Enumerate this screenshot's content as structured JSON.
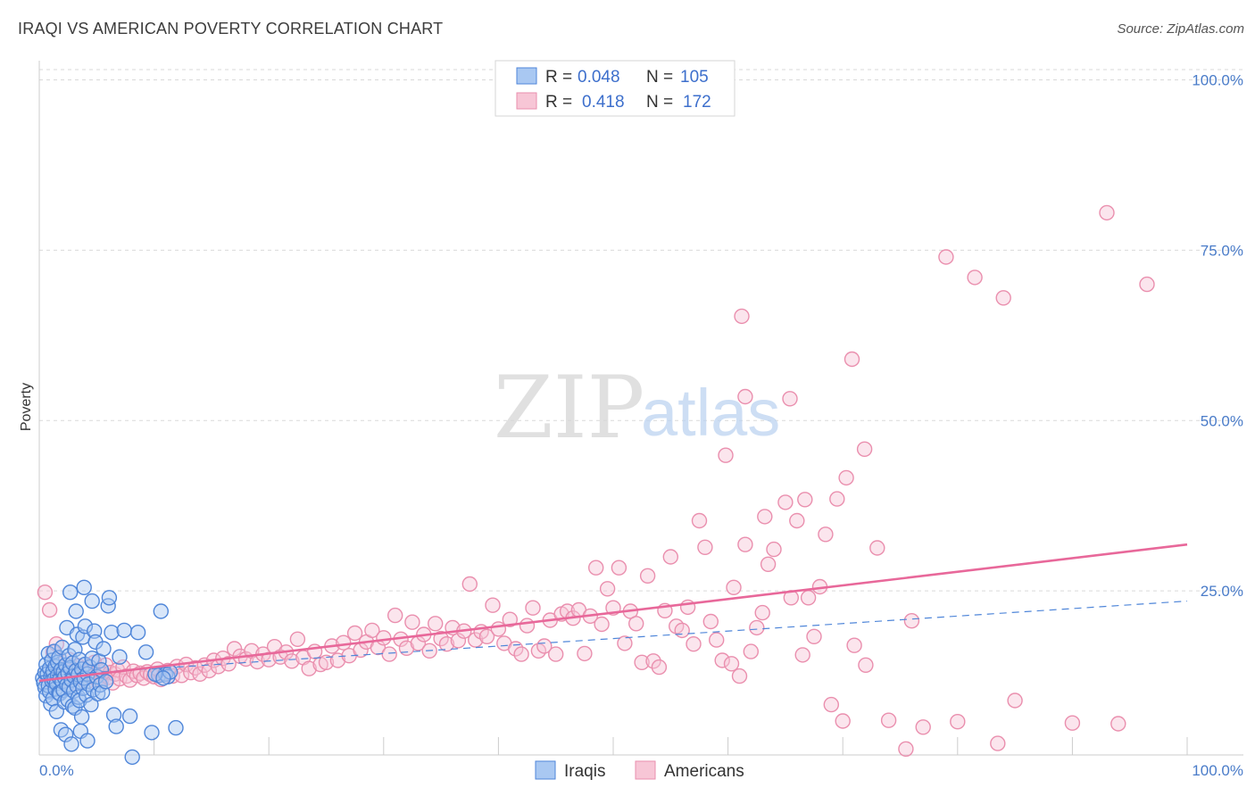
{
  "header": {
    "title": "IRAQI VS AMERICAN POVERTY CORRELATION CHART",
    "source": "Source: ZipAtlas.com"
  },
  "watermark": {
    "zip": "ZIP",
    "atlas": "atlas"
  },
  "colors": {
    "iraqis_fill": "#a9c8f2",
    "iraqis_stroke": "#4f86d9",
    "iraqis_line": "#4f86d9",
    "americans_fill": "#f7c6d6",
    "americans_stroke": "#ea8fae",
    "americans_line": "#e8689a",
    "tick_label": "#4a7cc9",
    "grid": "#d9d9d9"
  },
  "legend": {
    "iraqis": {
      "r_label": "R = ",
      "r_value": "0.048",
      "n_label": "N = ",
      "n_value": "105"
    },
    "americans": {
      "r_label": "R = ",
      "r_value": "0.418",
      "n_label": "N = ",
      "n_value": "172"
    }
  },
  "chart_data": {
    "type": "scatter",
    "ylabel": "Poverty",
    "xlim": [
      0,
      100
    ],
    "ylim": [
      0,
      105
    ],
    "x_ticks": [
      {
        "value": 0,
        "label": "0.0%"
      },
      {
        "value": 100,
        "label": "100.0%"
      }
    ],
    "y_ticks": [
      {
        "value": 25,
        "label": "25.0%"
      },
      {
        "value": 50,
        "label": "50.0%"
      },
      {
        "value": 75,
        "label": "75.0%"
      },
      {
        "value": 100,
        "label": "100.0%"
      }
    ],
    "grid": true,
    "legend_position": "top-center",
    "series": [
      {
        "name": "Iraqis",
        "r": 0.048,
        "n": 105,
        "trend": {
          "x": [
            0,
            100
          ],
          "y": [
            12.5,
            23.5
          ],
          "style": "dashed"
        },
        "points": [
          [
            0.3,
            12.2
          ],
          [
            0.4,
            11.5
          ],
          [
            0.5,
            13.0
          ],
          [
            0.5,
            10.8
          ],
          [
            0.6,
            14.2
          ],
          [
            0.6,
            9.6
          ],
          [
            0.7,
            12.8
          ],
          [
            0.8,
            11.1
          ],
          [
            0.8,
            15.8
          ],
          [
            0.9,
            13.6
          ],
          [
            0.9,
            10.2
          ],
          [
            1.0,
            12.4
          ],
          [
            1.0,
            8.4
          ],
          [
            1.1,
            14.8
          ],
          [
            1.1,
            11.8
          ],
          [
            1.2,
            13.2
          ],
          [
            1.2,
            9.2
          ],
          [
            1.3,
            12.0
          ],
          [
            1.3,
            16.1
          ],
          [
            1.4,
            10.6
          ],
          [
            1.4,
            13.9
          ],
          [
            1.5,
            11.4
          ],
          [
            1.5,
            7.3
          ],
          [
            1.6,
            12.6
          ],
          [
            1.6,
            14.5
          ],
          [
            1.7,
            10.0
          ],
          [
            1.7,
            15.2
          ],
          [
            1.8,
            12.1
          ],
          [
            1.8,
            9.9
          ],
          [
            1.9,
            13.4
          ],
          [
            1.9,
            4.6
          ],
          [
            2.0,
            11.7
          ],
          [
            2.0,
            16.7
          ],
          [
            2.1,
            10.4
          ],
          [
            2.1,
            13.1
          ],
          [
            2.2,
            12.3
          ],
          [
            2.2,
            8.7
          ],
          [
            2.3,
            14.1
          ],
          [
            2.3,
            3.9
          ],
          [
            2.4,
            11.2
          ],
          [
            2.4,
            19.6
          ],
          [
            2.5,
            12.9
          ],
          [
            2.5,
            9.0
          ],
          [
            2.6,
            15.5
          ],
          [
            2.6,
            10.9
          ],
          [
            2.7,
            24.8
          ],
          [
            2.7,
            13.7
          ],
          [
            2.8,
            2.5
          ],
          [
            2.8,
            11.9
          ],
          [
            2.9,
            8.1
          ],
          [
            2.9,
            14.4
          ],
          [
            3.0,
            12.5
          ],
          [
            3.0,
            10.3
          ],
          [
            3.1,
            16.4
          ],
          [
            3.1,
            7.8
          ],
          [
            3.2,
            13.3
          ],
          [
            3.2,
            22.0
          ],
          [
            3.3,
            11.0
          ],
          [
            3.3,
            18.6
          ],
          [
            3.4,
            12.7
          ],
          [
            3.4,
            9.4
          ],
          [
            3.5,
            14.9
          ],
          [
            3.5,
            8.9
          ],
          [
            3.6,
            11.6
          ],
          [
            3.6,
            4.4
          ],
          [
            3.7,
            13.5
          ],
          [
            3.7,
            6.5
          ],
          [
            3.8,
            10.7
          ],
          [
            3.8,
            18.2
          ],
          [
            3.9,
            12.2
          ],
          [
            3.9,
            25.5
          ],
          [
            4.0,
            14.2
          ],
          [
            4.0,
            19.8
          ],
          [
            4.1,
            9.7
          ],
          [
            4.2,
            12.8
          ],
          [
            4.2,
            3.0
          ],
          [
            4.3,
            11.3
          ],
          [
            4.4,
            13.8
          ],
          [
            4.5,
            8.3
          ],
          [
            4.6,
            23.5
          ],
          [
            4.6,
            15.1
          ],
          [
            4.7,
            10.5
          ],
          [
            4.8,
            19.1
          ],
          [
            4.9,
            17.5
          ],
          [
            5.0,
            12.4
          ],
          [
            5.1,
            9.9
          ],
          [
            5.2,
            14.7
          ],
          [
            5.3,
            11.2
          ],
          [
            5.4,
            13.4
          ],
          [
            5.5,
            10.1
          ],
          [
            5.6,
            16.5
          ],
          [
            5.8,
            11.7
          ],
          [
            6.0,
            22.8
          ],
          [
            6.1,
            24.0
          ],
          [
            6.3,
            18.9
          ],
          [
            6.5,
            6.8
          ],
          [
            6.7,
            5.1
          ],
          [
            7.0,
            15.3
          ],
          [
            7.4,
            19.2
          ],
          [
            7.9,
            6.6
          ],
          [
            8.1,
            0.6
          ],
          [
            8.6,
            18.9
          ],
          [
            9.3,
            16.0
          ],
          [
            9.8,
            4.2
          ],
          [
            10.6,
            22.0
          ],
          [
            10.4,
            12.6
          ],
          [
            11.0,
            12.8
          ],
          [
            11.2,
            12.4
          ],
          [
            11.4,
            13.1
          ],
          [
            10.1,
            12.8
          ],
          [
            10.8,
            12.2
          ],
          [
            11.9,
            4.9
          ]
        ]
      },
      {
        "name": "Americans",
        "r": 0.418,
        "n": 172,
        "trend": {
          "x": [
            0,
            100
          ],
          "y": [
            11.8,
            31.8
          ],
          "style": "solid"
        },
        "points": [
          [
            0.5,
            24.8
          ],
          [
            0.9,
            22.2
          ],
          [
            1.2,
            16.0
          ],
          [
            1.5,
            17.2
          ],
          [
            1.8,
            14.2
          ],
          [
            2.0,
            12.8
          ],
          [
            2.2,
            13.5
          ],
          [
            2.4,
            11.9
          ],
          [
            2.6,
            14.9
          ],
          [
            2.8,
            12.6
          ],
          [
            3.0,
            13.2
          ],
          [
            3.2,
            11.4
          ],
          [
            3.4,
            14.0
          ],
          [
            3.6,
            12.2
          ],
          [
            3.8,
            13.6
          ],
          [
            4.0,
            12.9
          ],
          [
            4.2,
            11.7
          ],
          [
            4.4,
            13.1
          ],
          [
            4.6,
            12.4
          ],
          [
            4.8,
            14.5
          ],
          [
            5.0,
            12.0
          ],
          [
            5.2,
            13.3
          ],
          [
            5.4,
            11.8
          ],
          [
            5.6,
            12.7
          ],
          [
            5.8,
            14.1
          ],
          [
            6.0,
            12.3
          ],
          [
            6.2,
            13.0
          ],
          [
            6.4,
            11.5
          ],
          [
            6.6,
            12.8
          ],
          [
            6.8,
            13.4
          ],
          [
            7.0,
            12.1
          ],
          [
            7.3,
            13.8
          ],
          [
            7.6,
            12.5
          ],
          [
            7.9,
            11.9
          ],
          [
            8.2,
            13.2
          ],
          [
            8.5,
            12.6
          ],
          [
            8.8,
            12.9
          ],
          [
            9.1,
            12.2
          ],
          [
            9.4,
            13.1
          ],
          [
            9.7,
            12.7
          ],
          [
            10.0,
            12.4
          ],
          [
            10.3,
            13.5
          ],
          [
            10.6,
            12.0
          ],
          [
            10.9,
            12.8
          ],
          [
            11.2,
            13.3
          ],
          [
            11.6,
            12.5
          ],
          [
            12.0,
            13.9
          ],
          [
            12.4,
            12.6
          ],
          [
            12.8,
            14.2
          ],
          [
            13.2,
            13.0
          ],
          [
            13.6,
            13.7
          ],
          [
            14.0,
            12.8
          ],
          [
            14.4,
            14.1
          ],
          [
            14.8,
            13.3
          ],
          [
            15.2,
            14.8
          ],
          [
            15.6,
            13.9
          ],
          [
            16.0,
            15.1
          ],
          [
            16.5,
            14.3
          ],
          [
            17.0,
            16.5
          ],
          [
            17.5,
            15.4
          ],
          [
            18.0,
            15.0
          ],
          [
            18.5,
            16.2
          ],
          [
            19.0,
            14.6
          ],
          [
            19.5,
            15.7
          ],
          [
            20.0,
            14.9
          ],
          [
            20.5,
            16.8
          ],
          [
            21.0,
            15.3
          ],
          [
            21.5,
            16.0
          ],
          [
            22.0,
            14.7
          ],
          [
            22.5,
            17.9
          ],
          [
            23.0,
            15.2
          ],
          [
            23.5,
            13.6
          ],
          [
            24.0,
            16.1
          ],
          [
            24.5,
            14.2
          ],
          [
            25.0,
            14.5
          ],
          [
            25.5,
            16.9
          ],
          [
            26.0,
            14.8
          ],
          [
            26.5,
            17.4
          ],
          [
            27.0,
            15.5
          ],
          [
            27.5,
            18.8
          ],
          [
            28.0,
            16.3
          ],
          [
            28.5,
            17.5
          ],
          [
            29.0,
            19.2
          ],
          [
            29.5,
            16.7
          ],
          [
            30.0,
            18.1
          ],
          [
            30.5,
            15.7
          ],
          [
            31.0,
            21.4
          ],
          [
            31.5,
            17.9
          ],
          [
            32.0,
            16.6
          ],
          [
            32.5,
            20.4
          ],
          [
            33.0,
            17.3
          ],
          [
            33.5,
            18.6
          ],
          [
            34.0,
            16.2
          ],
          [
            34.5,
            20.2
          ],
          [
            35.0,
            18.0
          ],
          [
            35.5,
            17.2
          ],
          [
            36.0,
            19.6
          ],
          [
            36.5,
            17.7
          ],
          [
            37.0,
            19.1
          ],
          [
            37.5,
            26.0
          ],
          [
            38.0,
            17.8
          ],
          [
            38.5,
            19.0
          ],
          [
            39.0,
            18.3
          ],
          [
            39.5,
            22.9
          ],
          [
            40.0,
            19.4
          ],
          [
            40.5,
            17.3
          ],
          [
            41.0,
            20.8
          ],
          [
            41.5,
            16.5
          ],
          [
            42.0,
            15.7
          ],
          [
            42.5,
            19.9
          ],
          [
            43.0,
            22.5
          ],
          [
            43.5,
            16.2
          ],
          [
            44.0,
            16.9
          ],
          [
            44.5,
            20.7
          ],
          [
            45.0,
            15.7
          ],
          [
            45.5,
            21.6
          ],
          [
            46.0,
            22.0
          ],
          [
            46.5,
            21.0
          ],
          [
            47.0,
            22.2
          ],
          [
            47.5,
            15.8
          ],
          [
            48.0,
            21.3
          ],
          [
            48.5,
            28.4
          ],
          [
            49.0,
            20.1
          ],
          [
            49.5,
            25.3
          ],
          [
            50.0,
            22.5
          ],
          [
            50.5,
            28.4
          ],
          [
            51.0,
            17.3
          ],
          [
            51.5,
            22.0
          ],
          [
            52.0,
            20.2
          ],
          [
            52.5,
            14.5
          ],
          [
            53.0,
            27.2
          ],
          [
            53.5,
            14.7
          ],
          [
            54.0,
            13.8
          ],
          [
            54.5,
            22.1
          ],
          [
            55.0,
            30.0
          ],
          [
            55.5,
            19.8
          ],
          [
            56.0,
            19.2
          ],
          [
            56.5,
            22.6
          ],
          [
            57.0,
            17.2
          ],
          [
            57.5,
            35.3
          ],
          [
            58.0,
            31.4
          ],
          [
            58.5,
            20.5
          ],
          [
            59.0,
            17.8
          ],
          [
            59.5,
            14.8
          ],
          [
            60.5,
            25.5
          ],
          [
            61.0,
            12.5
          ],
          [
            61.5,
            31.8
          ],
          [
            62.0,
            16.1
          ],
          [
            62.5,
            19.6
          ],
          [
            63.0,
            21.8
          ],
          [
            63.5,
            28.9
          ],
          [
            64.0,
            31.1
          ],
          [
            65.0,
            38.0
          ],
          [
            65.5,
            24.0
          ],
          [
            66.0,
            35.3
          ],
          [
            66.5,
            15.6
          ],
          [
            67.0,
            24.0
          ],
          [
            67.5,
            18.3
          ],
          [
            68.0,
            25.6
          ],
          [
            68.5,
            33.3
          ],
          [
            69.0,
            8.3
          ],
          [
            69.5,
            38.5
          ],
          [
            70.0,
            5.9
          ],
          [
            71.0,
            17.0
          ],
          [
            72.0,
            14.1
          ],
          [
            73.0,
            31.3
          ],
          [
            74.0,
            6.0
          ],
          [
            75.5,
            1.8
          ],
          [
            76.0,
            20.6
          ],
          [
            77.0,
            5.0
          ],
          [
            79.0,
            74.0
          ],
          [
            80.0,
            5.8
          ],
          [
            81.5,
            71.0
          ],
          [
            83.5,
            2.6
          ],
          [
            84.0,
            68.0
          ],
          [
            85.0,
            8.9
          ],
          [
            90.0,
            5.6
          ],
          [
            93.0,
            80.5
          ],
          [
            94.0,
            5.5
          ],
          [
            96.5,
            70.0
          ],
          [
            61.2,
            65.3
          ],
          [
            61.5,
            53.5
          ],
          [
            65.4,
            53.2
          ],
          [
            59.8,
            44.9
          ],
          [
            70.8,
            59.0
          ],
          [
            71.9,
            45.8
          ],
          [
            70.3,
            41.6
          ],
          [
            66.7,
            38.4
          ],
          [
            63.2,
            35.9
          ],
          [
            60.3,
            14.3
          ]
        ]
      }
    ]
  },
  "bottom_legend": [
    {
      "label": "Iraqis"
    },
    {
      "label": "Americans"
    }
  ]
}
